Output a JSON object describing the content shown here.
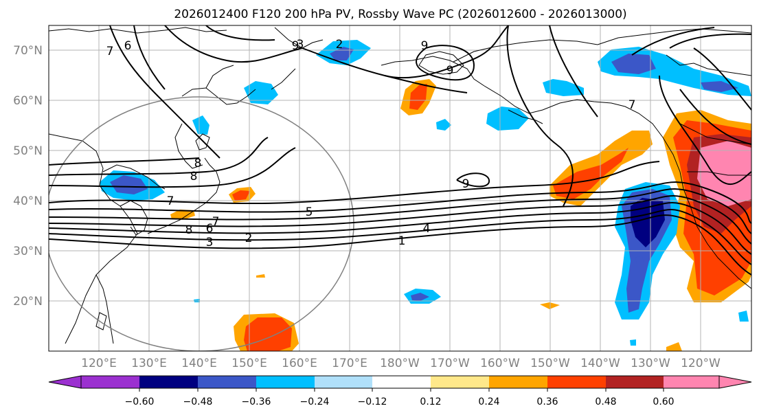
{
  "title": "2026012400 F120 200 hPa PV, Rossby Wave PC (2026012600 - 2026013000)",
  "map": {
    "lon_range": [
      110,
      250
    ],
    "lat_range": [
      10,
      75
    ],
    "lat_ticks": [
      "70°N",
      "60°N",
      "50°N",
      "40°N",
      "30°N",
      "20°N"
    ],
    "lat_tick_values": [
      70,
      60,
      50,
      40,
      30,
      20
    ],
    "lon_ticks": [
      "120°E",
      "130°E",
      "140°E",
      "150°E",
      "160°E",
      "170°E",
      "180°W",
      "170°W",
      "160°W",
      "150°W",
      "140°W",
      "130°W",
      "120°W"
    ],
    "lon_tick_values": [
      120,
      130,
      140,
      150,
      160,
      170,
      180,
      190,
      200,
      210,
      220,
      230,
      240
    ],
    "grid": true,
    "circle_center": {
      "lon": 140,
      "lat": 35
    },
    "circle_color": "#808080",
    "contour_labels": [
      "9",
      "9",
      "9",
      "9",
      "8",
      "8",
      "8",
      "7",
      "7",
      "6",
      "6",
      "5",
      "4",
      "3",
      "3",
      "2",
      "2",
      "1",
      "7",
      "7"
    ]
  },
  "colorbar": {
    "colors": [
      "#9b30d0",
      "#000080",
      "#3b57c8",
      "#00bfff",
      "#b0e0fa",
      "#ffffff",
      "#ffe88a",
      "#ffa500",
      "#ff4000",
      "#b22222",
      "#ff85b0"
    ],
    "labels": [
      "−0.60",
      "−0.48",
      "−0.36",
      "−0.24",
      "−0.12",
      "0.12",
      "0.24",
      "0.36",
      "0.48",
      "0.60"
    ]
  }
}
